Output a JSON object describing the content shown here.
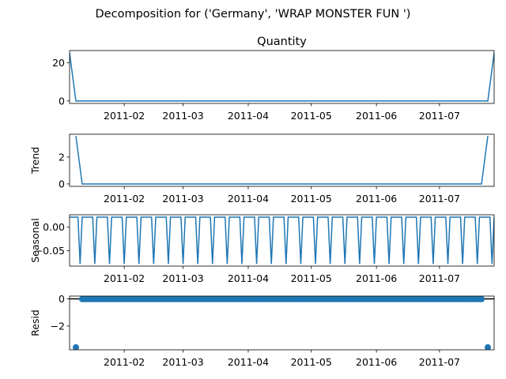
{
  "figure": {
    "title": "Decomposition for ('Germany', 'WRAP MONSTER FUN ')",
    "series_color": "#1f77b4"
  },
  "chart_data": [
    {
      "type": "line",
      "title": "Quantity",
      "ylabel": "",
      "x_range": [
        "2011-01-06",
        "2011-07-27"
      ],
      "ylim": [
        -1.3,
        26.3
      ],
      "yticks": [
        0,
        20
      ],
      "xticks": [
        "2011-02",
        "2011-03",
        "2011-04",
        "2011-05",
        "2011-06",
        "2011-07"
      ],
      "x": [
        "2011-01-06",
        "2011-01-09",
        "2011-07-24",
        "2011-07-27"
      ],
      "values": [
        25,
        0,
        0,
        25
      ]
    },
    {
      "type": "line",
      "title": "",
      "ylabel": "Trend",
      "x_range": [
        "2011-01-06",
        "2011-07-27"
      ],
      "ylim": [
        -0.18,
        3.7
      ],
      "yticks": [
        0,
        2
      ],
      "xticks": [
        "2011-02",
        "2011-03",
        "2011-04",
        "2011-05",
        "2011-06",
        "2011-07"
      ],
      "x": [
        "2011-01-09",
        "2011-01-12",
        "2011-07-21",
        "2011-07-24"
      ],
      "values": [
        3.57,
        0,
        0,
        3.57
      ]
    },
    {
      "type": "line",
      "title": "",
      "ylabel": "Seasonal",
      "x_range": [
        "2011-01-06",
        "2011-07-27"
      ],
      "ylim": [
        -0.083,
        0.0265
      ],
      "yticks": [
        0.0,
        -0.05
      ],
      "ytick_labels": [
        "0.00",
        "−0.05"
      ],
      "xticks": [
        "2011-02",
        "2011-03",
        "2011-04",
        "2011-05",
        "2011-06",
        "2011-07"
      ],
      "pattern": {
        "period_days": 7,
        "values": [
          0.0214,
          0.0214,
          0.0214,
          0.0214,
          0.0214,
          -0.0786,
          0.0214
        ]
      }
    },
    {
      "type": "scatter",
      "title": "",
      "ylabel": "Resid",
      "x_range": [
        "2011-01-06",
        "2011-07-27"
      ],
      "ylim": [
        -3.75,
        0.2
      ],
      "yticks": [
        0,
        -2
      ],
      "ytick_labels": [
        "0",
        "−2"
      ],
      "xticks": [
        "2011-02",
        "2011-03",
        "2011-04",
        "2011-05",
        "2011-06",
        "2011-07"
      ],
      "baseline": 0,
      "outliers": [
        {
          "x": "2011-01-09",
          "y": -3.57
        },
        {
          "x": "2011-07-24",
          "y": -3.57
        }
      ],
      "near_zero_range": [
        "2011-01-12",
        "2011-07-21"
      ],
      "near_zero_value": -0.02
    }
  ]
}
